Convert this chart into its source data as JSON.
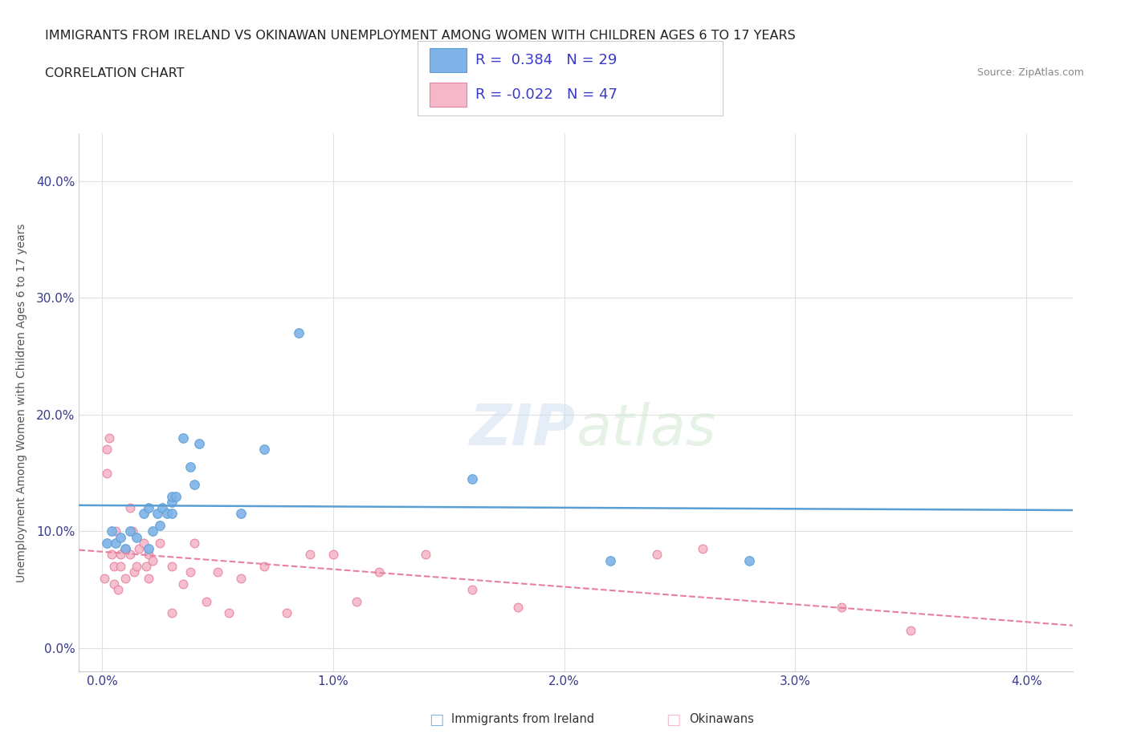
{
  "title": "IMMIGRANTS FROM IRELAND VS OKINAWAN UNEMPLOYMENT AMONG WOMEN WITH CHILDREN AGES 6 TO 17 YEARS",
  "subtitle": "CORRELATION CHART",
  "source": "Source: ZipAtlas.com",
  "xlabel_ticks": [
    "0.0%",
    "1.0%",
    "2.0%",
    "3.0%",
    "4.0%"
  ],
  "xlabel_vals": [
    0.0,
    0.01,
    0.02,
    0.03,
    0.04
  ],
  "ylabel_ticks": [
    "0.0%",
    "10.0%",
    "20.0%",
    "30.0%",
    "40.0%"
  ],
  "ylabel_vals": [
    0.0,
    0.1,
    0.2,
    0.3,
    0.4
  ],
  "xlim": [
    -0.001,
    0.042
  ],
  "ylim": [
    -0.02,
    0.44
  ],
  "ireland_color": "#7fb3e8",
  "ireland_edge": "#5a9fd4",
  "okinawa_color": "#f5b8c8",
  "okinawa_edge": "#e87fa0",
  "trend_ireland_color": "#5a9fd4",
  "trend_okinawa_color": "#e87fa0",
  "legend_R_ireland": "0.384",
  "legend_N_ireland": "29",
  "legend_R_okinawa": "-0.022",
  "legend_N_okinawa": "47",
  "watermark": "ZIPatlas",
  "ireland_scatter_x": [
    0.0002,
    0.0004,
    0.0006,
    0.0008,
    0.001,
    0.0012,
    0.0015,
    0.0018,
    0.002,
    0.002,
    0.0022,
    0.0024,
    0.0025,
    0.0026,
    0.0028,
    0.003,
    0.003,
    0.003,
    0.0032,
    0.0035,
    0.0038,
    0.004,
    0.0042,
    0.006,
    0.007,
    0.0085,
    0.016,
    0.022,
    0.028
  ],
  "ireland_scatter_y": [
    0.09,
    0.1,
    0.09,
    0.095,
    0.085,
    0.1,
    0.095,
    0.115,
    0.12,
    0.085,
    0.1,
    0.115,
    0.105,
    0.12,
    0.115,
    0.125,
    0.115,
    0.13,
    0.13,
    0.18,
    0.155,
    0.14,
    0.175,
    0.115,
    0.17,
    0.27,
    0.145,
    0.075,
    0.075
  ],
  "okinawa_scatter_x": [
    0.0001,
    0.0002,
    0.0002,
    0.0003,
    0.0004,
    0.0005,
    0.0005,
    0.0006,
    0.0007,
    0.0008,
    0.0008,
    0.001,
    0.001,
    0.0012,
    0.0012,
    0.0013,
    0.0014,
    0.0015,
    0.0016,
    0.0018,
    0.0019,
    0.002,
    0.002,
    0.0022,
    0.0025,
    0.003,
    0.003,
    0.0035,
    0.0038,
    0.004,
    0.0045,
    0.005,
    0.0055,
    0.006,
    0.007,
    0.008,
    0.009,
    0.01,
    0.011,
    0.012,
    0.014,
    0.016,
    0.018,
    0.024,
    0.026,
    0.032,
    0.035
  ],
  "okinawa_scatter_y": [
    0.06,
    0.17,
    0.15,
    0.18,
    0.08,
    0.055,
    0.07,
    0.1,
    0.05,
    0.07,
    0.08,
    0.06,
    0.085,
    0.12,
    0.08,
    0.1,
    0.065,
    0.07,
    0.085,
    0.09,
    0.07,
    0.06,
    0.08,
    0.075,
    0.09,
    0.03,
    0.07,
    0.055,
    0.065,
    0.09,
    0.04,
    0.065,
    0.03,
    0.06,
    0.07,
    0.03,
    0.08,
    0.08,
    0.04,
    0.065,
    0.08,
    0.05,
    0.035,
    0.08,
    0.085,
    0.035,
    0.015
  ],
  "background_color": "#ffffff",
  "grid_color": "#e0e0e0"
}
